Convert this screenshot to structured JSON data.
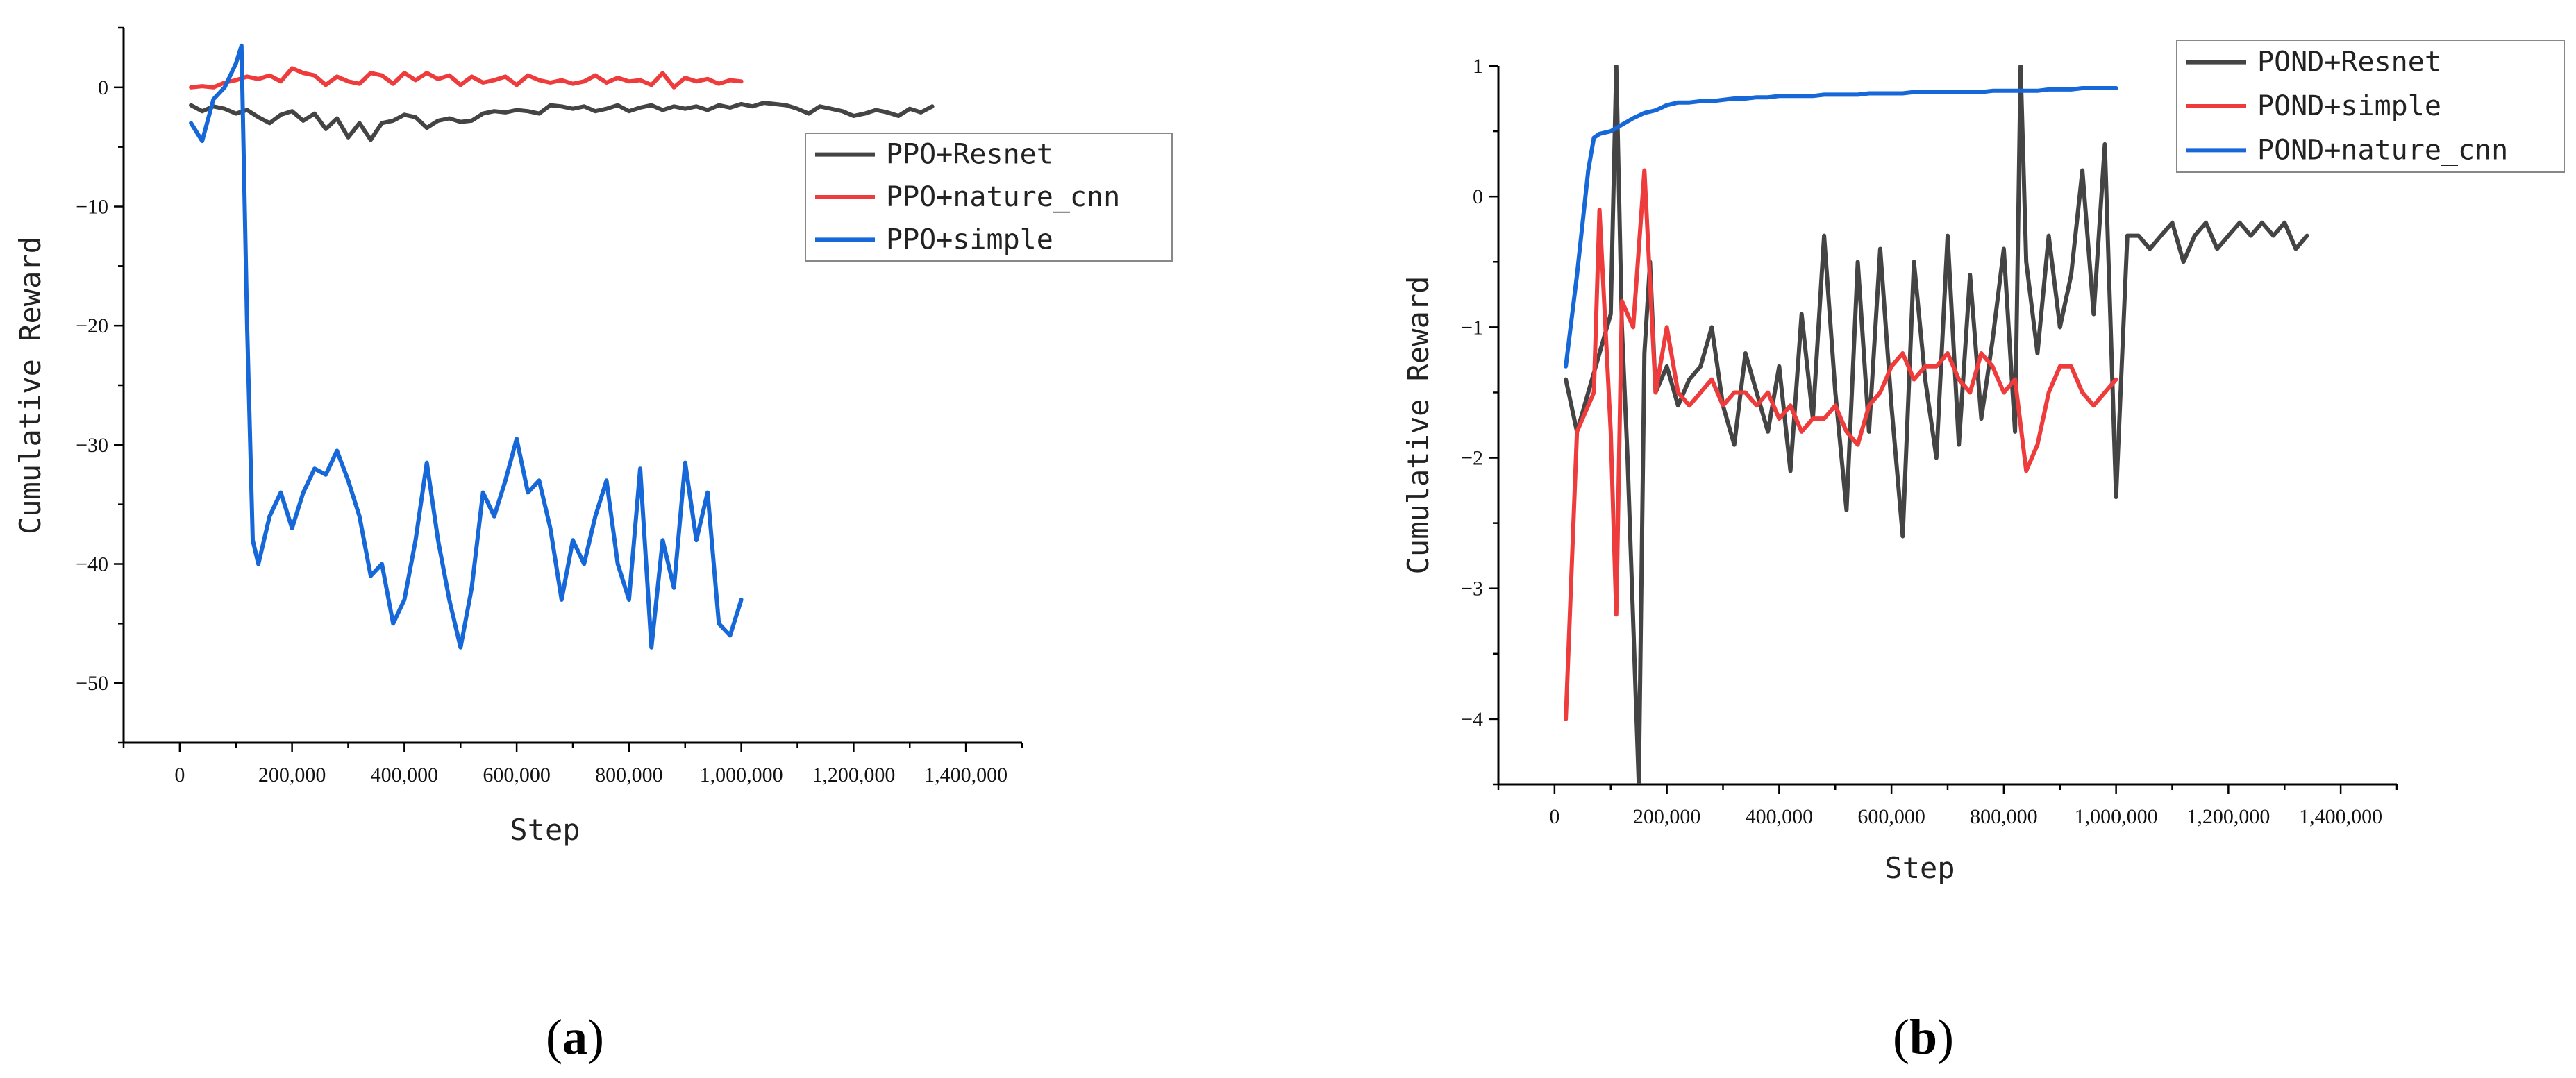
{
  "chart_data": [
    {
      "type": "line",
      "caption": {
        "open": "(",
        "letter": "a",
        "close": ")"
      },
      "xlabel": "Step",
      "ylabel": "Cumulative Reward",
      "xlim": [
        -100000,
        1500000
      ],
      "ylim": [
        -55,
        5
      ],
      "xticks": [
        0,
        200000,
        400000,
        600000,
        800000,
        1000000,
        1200000,
        1400000
      ],
      "xtick_labels": [
        "0",
        "200,000",
        "400,000",
        "600,000",
        "800,000",
        "1,000,000",
        "1,200,000",
        "1,400,000"
      ],
      "yticks": [
        0,
        -10,
        -20,
        -30,
        -40,
        -50
      ],
      "ytick_labels": [
        "0",
        "−10",
        "−20",
        "−30",
        "−40",
        "−50"
      ],
      "legend_position": "right",
      "series": [
        {
          "name": "PPO+Resnet",
          "color": "#444444",
          "x": [
            20000,
            40000,
            60000,
            80000,
            100000,
            120000,
            140000,
            160000,
            180000,
            200000,
            220000,
            240000,
            260000,
            280000,
            300000,
            320000,
            340000,
            360000,
            380000,
            400000,
            420000,
            440000,
            460000,
            480000,
            500000,
            520000,
            540000,
            560000,
            580000,
            600000,
            620000,
            640000,
            660000,
            680000,
            700000,
            720000,
            740000,
            760000,
            780000,
            800000,
            820000,
            840000,
            860000,
            880000,
            900000,
            920000,
            940000,
            960000,
            980000,
            1000000,
            1020000,
            1040000,
            1060000,
            1080000,
            1100000,
            1120000,
            1140000,
            1160000,
            1180000,
            1200000,
            1220000,
            1240000,
            1260000,
            1280000,
            1300000,
            1320000,
            1340000
          ],
          "values": [
            -1.5,
            -2.0,
            -1.6,
            -1.8,
            -2.2,
            -1.9,
            -2.5,
            -3.0,
            -2.3,
            -2.0,
            -2.8,
            -2.2,
            -3.5,
            -2.6,
            -4.2,
            -3.0,
            -4.4,
            -3.0,
            -2.8,
            -2.3,
            -2.5,
            -3.4,
            -2.8,
            -2.6,
            -2.9,
            -2.8,
            -2.2,
            -2.0,
            -2.1,
            -1.9,
            -2.0,
            -2.2,
            -1.5,
            -1.6,
            -1.8,
            -1.6,
            -2.0,
            -1.8,
            -1.5,
            -2.0,
            -1.7,
            -1.5,
            -1.9,
            -1.6,
            -1.8,
            -1.6,
            -1.9,
            -1.5,
            -1.7,
            -1.4,
            -1.6,
            -1.3,
            -1.4,
            -1.5,
            -1.8,
            -2.2,
            -1.6,
            -1.8,
            -2.0,
            -2.4,
            -2.2,
            -1.9,
            -2.1,
            -2.4,
            -1.8,
            -2.1,
            -1.6
          ]
        },
        {
          "name": "PPO+nature_cnn",
          "color": "#ee3b3b",
          "x": [
            20000,
            40000,
            60000,
            80000,
            100000,
            120000,
            140000,
            160000,
            180000,
            200000,
            220000,
            240000,
            260000,
            280000,
            300000,
            320000,
            340000,
            360000,
            380000,
            400000,
            420000,
            440000,
            460000,
            480000,
            500000,
            520000,
            540000,
            560000,
            580000,
            600000,
            620000,
            640000,
            660000,
            680000,
            700000,
            720000,
            740000,
            760000,
            780000,
            800000,
            820000,
            840000,
            860000,
            880000,
            900000,
            920000,
            940000,
            960000,
            980000,
            1000000
          ],
          "values": [
            0.0,
            0.1,
            0.0,
            0.4,
            0.6,
            0.9,
            0.7,
            1.0,
            0.5,
            1.6,
            1.2,
            1.0,
            0.2,
            0.9,
            0.5,
            0.3,
            1.2,
            1.0,
            0.3,
            1.2,
            0.6,
            1.2,
            0.7,
            1.0,
            0.2,
            0.9,
            0.4,
            0.6,
            0.9,
            0.2,
            1.0,
            0.6,
            0.4,
            0.6,
            0.3,
            0.5,
            1.0,
            0.4,
            0.8,
            0.5,
            0.6,
            0.2,
            1.2,
            0.0,
            0.8,
            0.5,
            0.7,
            0.3,
            0.6,
            0.5
          ]
        },
        {
          "name": "PPO+simple",
          "color": "#1668d8",
          "x": [
            20000,
            40000,
            60000,
            80000,
            100000,
            110000,
            120000,
            130000,
            140000,
            160000,
            180000,
            200000,
            220000,
            240000,
            260000,
            280000,
            300000,
            320000,
            340000,
            360000,
            380000,
            400000,
            420000,
            440000,
            460000,
            480000,
            500000,
            520000,
            540000,
            560000,
            580000,
            600000,
            620000,
            640000,
            660000,
            680000,
            700000,
            720000,
            740000,
            760000,
            780000,
            800000,
            820000,
            840000,
            860000,
            880000,
            900000,
            920000,
            940000,
            960000,
            980000,
            1000000
          ],
          "values": [
            -3.0,
            -4.5,
            -1.0,
            0.0,
            2.0,
            3.5,
            -20.0,
            -38.0,
            -40.0,
            -36.0,
            -34.0,
            -37.0,
            -34.0,
            -32.0,
            -32.5,
            -30.5,
            -33.0,
            -36.0,
            -41.0,
            -40.0,
            -45.0,
            -43.0,
            -38.0,
            -31.5,
            -38.0,
            -43.0,
            -47.0,
            -42.0,
            -34.0,
            -36.0,
            -33.0,
            -29.5,
            -34.0,
            -33.0,
            -37.0,
            -43.0,
            -38.0,
            -40.0,
            -36.0,
            -33.0,
            -40.0,
            -43.0,
            -32.0,
            -47.0,
            -38.0,
            -42.0,
            -31.5,
            -38.0,
            -34.0,
            -45.0,
            -46.0,
            -43.0
          ]
        }
      ]
    },
    {
      "type": "line",
      "caption": {
        "open": "(",
        "letter": "b",
        "close": ")"
      },
      "xlabel": "Step",
      "ylabel": "Cumulative Reward",
      "xlim": [
        -100000,
        1500000
      ],
      "ylim": [
        -4.5,
        1
      ],
      "xticks": [
        0,
        200000,
        400000,
        600000,
        800000,
        1000000,
        1200000,
        1400000
      ],
      "xtick_labels": [
        "0",
        "200,000",
        "400,000",
        "600,000",
        "800,000",
        "1,000,000",
        "1,200,000",
        "1,400,000"
      ],
      "yticks": [
        1,
        0,
        -1,
        -2,
        -3,
        -4
      ],
      "ytick_labels": [
        "1",
        "0",
        "−1",
        "−2",
        "−3",
        "−4"
      ],
      "legend_position": "top-right",
      "series": [
        {
          "name": "POND+Resnet",
          "color": "#444444",
          "x": [
            20000,
            40000,
            60000,
            80000,
            100000,
            110000,
            120000,
            130000,
            150000,
            160000,
            170000,
            180000,
            200000,
            220000,
            240000,
            260000,
            280000,
            300000,
            320000,
            340000,
            360000,
            380000,
            400000,
            420000,
            440000,
            460000,
            480000,
            500000,
            520000,
            540000,
            560000,
            580000,
            600000,
            620000,
            640000,
            660000,
            680000,
            700000,
            720000,
            740000,
            760000,
            780000,
            800000,
            820000,
            830000,
            840000,
            860000,
            880000,
            900000,
            920000,
            940000,
            960000,
            980000,
            1000000,
            1020000,
            1040000,
            1060000,
            1080000,
            1100000,
            1120000,
            1140000,
            1160000,
            1180000,
            1200000,
            1220000,
            1240000,
            1260000,
            1280000,
            1300000,
            1320000,
            1340000
          ],
          "values": [
            -1.4,
            -1.8,
            -1.5,
            -1.2,
            -0.9,
            1.0,
            -1.0,
            -2.0,
            -4.5,
            -1.2,
            -0.5,
            -1.5,
            -1.3,
            -1.6,
            -1.4,
            -1.3,
            -1.0,
            -1.6,
            -1.9,
            -1.2,
            -1.5,
            -1.8,
            -1.3,
            -2.1,
            -0.9,
            -1.7,
            -0.3,
            -1.5,
            -2.4,
            -0.5,
            -1.8,
            -0.4,
            -1.6,
            -2.6,
            -0.5,
            -1.4,
            -2.0,
            -0.3,
            -1.9,
            -0.6,
            -1.7,
            -1.1,
            -0.4,
            -1.8,
            1.0,
            -0.5,
            -1.2,
            -0.3,
            -1.0,
            -0.6,
            0.2,
            -0.9,
            0.4,
            -2.3,
            -0.3,
            -0.3,
            -0.4,
            -0.3,
            -0.2,
            -0.5,
            -0.3,
            -0.2,
            -0.4,
            -0.3,
            -0.2,
            -0.3,
            -0.2,
            -0.3,
            -0.2,
            -0.4,
            -0.3
          ]
        },
        {
          "name": "POND+simple",
          "color": "#ee3b3b",
          "x": [
            20000,
            40000,
            60000,
            70000,
            80000,
            100000,
            110000,
            120000,
            140000,
            160000,
            180000,
            200000,
            220000,
            240000,
            260000,
            280000,
            300000,
            320000,
            340000,
            360000,
            380000,
            400000,
            420000,
            440000,
            460000,
            480000,
            500000,
            520000,
            540000,
            560000,
            580000,
            600000,
            620000,
            640000,
            660000,
            680000,
            700000,
            720000,
            740000,
            760000,
            780000,
            800000,
            820000,
            840000,
            860000,
            880000,
            900000,
            920000,
            940000,
            960000,
            980000,
            1000000
          ],
          "values": [
            -4.0,
            -1.8,
            -1.6,
            -1.5,
            -0.1,
            -1.8,
            -3.2,
            -0.8,
            -1.0,
            0.2,
            -1.5,
            -1.0,
            -1.5,
            -1.6,
            -1.5,
            -1.4,
            -1.6,
            -1.5,
            -1.5,
            -1.6,
            -1.5,
            -1.7,
            -1.6,
            -1.8,
            -1.7,
            -1.7,
            -1.6,
            -1.8,
            -1.9,
            -1.6,
            -1.5,
            -1.3,
            -1.2,
            -1.4,
            -1.3,
            -1.3,
            -1.2,
            -1.4,
            -1.5,
            -1.2,
            -1.3,
            -1.5,
            -1.4,
            -2.1,
            -1.9,
            -1.5,
            -1.3,
            -1.3,
            -1.5,
            -1.6,
            -1.5,
            -1.4
          ]
        },
        {
          "name": "POND+nature_cnn",
          "color": "#1668d8",
          "x": [
            20000,
            40000,
            60000,
            70000,
            80000,
            100000,
            120000,
            140000,
            160000,
            180000,
            200000,
            220000,
            240000,
            260000,
            280000,
            300000,
            320000,
            340000,
            360000,
            380000,
            400000,
            420000,
            440000,
            460000,
            480000,
            500000,
            520000,
            540000,
            560000,
            580000,
            600000,
            620000,
            640000,
            660000,
            680000,
            700000,
            720000,
            740000,
            760000,
            780000,
            800000,
            820000,
            840000,
            860000,
            880000,
            900000,
            920000,
            940000,
            960000,
            980000,
            1000000
          ],
          "values": [
            -1.3,
            -0.6,
            0.2,
            0.45,
            0.48,
            0.5,
            0.55,
            0.6,
            0.64,
            0.66,
            0.7,
            0.72,
            0.72,
            0.73,
            0.73,
            0.74,
            0.75,
            0.75,
            0.76,
            0.76,
            0.77,
            0.77,
            0.77,
            0.77,
            0.78,
            0.78,
            0.78,
            0.78,
            0.79,
            0.79,
            0.79,
            0.79,
            0.8,
            0.8,
            0.8,
            0.8,
            0.8,
            0.8,
            0.8,
            0.81,
            0.81,
            0.81,
            0.81,
            0.81,
            0.82,
            0.82,
            0.82,
            0.83,
            0.83,
            0.83,
            0.83
          ]
        }
      ]
    }
  ]
}
